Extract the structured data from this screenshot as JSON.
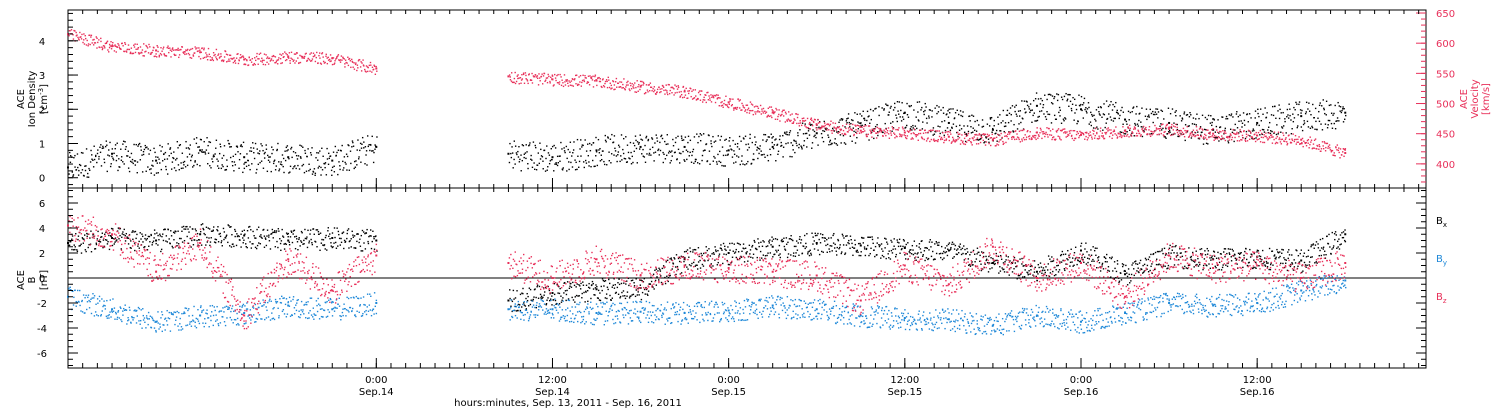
{
  "chart_data": [
    {
      "type": "scatter",
      "panel": "top",
      "ylabel_left": [
        "ACE",
        "Ion Density",
        "[cm",
        "-3",
        "]"
      ],
      "ylabel_right": [
        "ACE",
        "Velocity",
        "[km/s]"
      ],
      "y_left_lim": [
        -0.3,
        4.9
      ],
      "y_left_ticks": [
        "0",
        "1",
        "2",
        "3",
        "4"
      ],
      "y_left_tick_values": [
        0,
        1,
        2,
        3,
        4
      ],
      "y_right_lim": [
        360,
        655
      ],
      "y_right_ticks": [
        "400",
        "450",
        "500",
        "550",
        "600",
        "650"
      ],
      "y_right_tick_values": [
        400,
        450,
        500,
        550,
        600,
        650
      ],
      "series": [
        {
          "color": "#000000",
          "axis": "left",
          "x_hours": [
            0,
            3,
            6,
            9,
            12,
            15,
            18,
            21,
            24,
            27,
            30,
            33,
            36,
            39,
            42,
            45,
            48,
            51,
            54,
            57,
            60,
            63,
            66,
            69,
            72,
            75,
            78,
            81,
            84,
            87
          ],
          "values": [
            0.3,
            0.7,
            0.5,
            0.8,
            0.6,
            0.6,
            0.5,
            0.9,
            null,
            null,
            0.7,
            0.6,
            0.8,
            0.9,
            0.9,
            0.8,
            0.9,
            1.3,
            1.5,
            1.9,
            1.6,
            1.4,
            2.1,
            2.0,
            1.7,
            1.6,
            1.4,
            1.6,
            1.8,
            1.9
          ]
        },
        {
          "color": "#e8305a",
          "axis": "right",
          "x_hours": [
            0,
            3,
            6,
            9,
            12,
            15,
            18,
            21,
            24,
            27,
            30,
            33,
            36,
            39,
            42,
            45,
            48,
            51,
            54,
            57,
            60,
            63,
            66,
            69,
            72,
            75,
            78,
            81,
            84,
            87
          ],
          "values": [
            615,
            595,
            588,
            585,
            573,
            578,
            575,
            558,
            null,
            null,
            545,
            540,
            538,
            528,
            520,
            502,
            485,
            465,
            455,
            452,
            445,
            440,
            452,
            448,
            455,
            458,
            450,
            447,
            440,
            418
          ]
        }
      ]
    },
    {
      "type": "scatter",
      "panel": "bottom",
      "ylabel_left": [
        "ACE",
        "B",
        "[nT]"
      ],
      "y_lim": [
        -7.2,
        7.2
      ],
      "y_ticks": [
        "-6",
        "-4",
        "-2",
        "0",
        "2",
        "4",
        "6"
      ],
      "y_tick_values": [
        -6,
        -4,
        -2,
        0,
        2,
        4,
        6
      ],
      "legend": [
        "B",
        "B",
        "B"
      ],
      "legend_subscripts": [
        "x",
        "y",
        "z"
      ],
      "legend_position": "right",
      "series": [
        {
          "color": "#000000",
          "x_hours": [
            0,
            3,
            6,
            9,
            12,
            15,
            18,
            21,
            24,
            27,
            30,
            33,
            36,
            39,
            42,
            45,
            48,
            51,
            54,
            57,
            60,
            63,
            66,
            69,
            72,
            75,
            78,
            81,
            84,
            87
          ],
          "values": [
            2.8,
            3.2,
            3.0,
            3.5,
            3.4,
            3.0,
            3.2,
            3.0,
            null,
            null,
            -1.8,
            -1.2,
            -0.9,
            -0.8,
            1.5,
            2.0,
            2.5,
            2.8,
            2.6,
            2.4,
            2.2,
            1.2,
            0.5,
            2.2,
            0.3,
            1.8,
            1.5,
            1.7,
            1.4,
            3.5
          ]
        },
        {
          "color": "#1e88d8",
          "x_hours": [
            0,
            3,
            6,
            9,
            12,
            15,
            18,
            21,
            24,
            27,
            30,
            33,
            36,
            39,
            42,
            45,
            48,
            51,
            54,
            57,
            60,
            63,
            66,
            69,
            72,
            75,
            78,
            81,
            84,
            87
          ],
          "values": [
            -1.5,
            -2.5,
            -3.5,
            -3.0,
            -2.8,
            -2.2,
            -2.5,
            -2.0,
            null,
            null,
            -2.5,
            -2.5,
            -2.8,
            -2.7,
            -2.8,
            -2.6,
            -2.2,
            -2.5,
            -3.0,
            -3.2,
            -3.3,
            -3.8,
            -3.0,
            -3.5,
            -2.8,
            -2.0,
            -2.2,
            -2.0,
            -1.0,
            -0.2
          ]
        },
        {
          "color": "#e8305a",
          "x_hours": [
            0,
            3,
            6,
            9,
            12,
            15,
            18,
            21,
            24,
            27,
            30,
            33,
            36,
            39,
            42,
            45,
            48,
            51,
            54,
            57,
            60,
            63,
            66,
            69,
            72,
            75,
            78,
            81,
            84,
            87
          ],
          "values": [
            4.2,
            3.5,
            0.5,
            2.8,
            -3.0,
            1.5,
            -1.0,
            1.8,
            null,
            null,
            1.2,
            0.0,
            1.5,
            0.2,
            1.0,
            0.8,
            0.5,
            0.2,
            -1.8,
            1.0,
            -0.5,
            2.5,
            0.0,
            1.2,
            -1.5,
            1.8,
            0.8,
            1.0,
            0.0,
            1.2
          ]
        }
      ]
    }
  ],
  "x_axis": {
    "range_hours": [
      0,
      92.5
    ],
    "minor_step_hours": 1,
    "tick_hours": [
      21,
      33,
      45,
      57,
      69,
      81
    ],
    "tick_times": [
      "0:00",
      "12:00",
      "0:00",
      "12:00",
      "0:00",
      "12:00"
    ],
    "tick_days": [
      "Sep.14",
      "Sep.14",
      "Sep.15",
      "Sep.15",
      "Sep.16",
      "Sep.16"
    ],
    "title": "hours:minutes, Sep. 13, 2011 - Sep. 16, 2011"
  },
  "colors": {
    "black": "#000000",
    "red": "#e8305a",
    "blue": "#1e88d8",
    "axis": "#000000",
    "background": "#ffffff"
  }
}
